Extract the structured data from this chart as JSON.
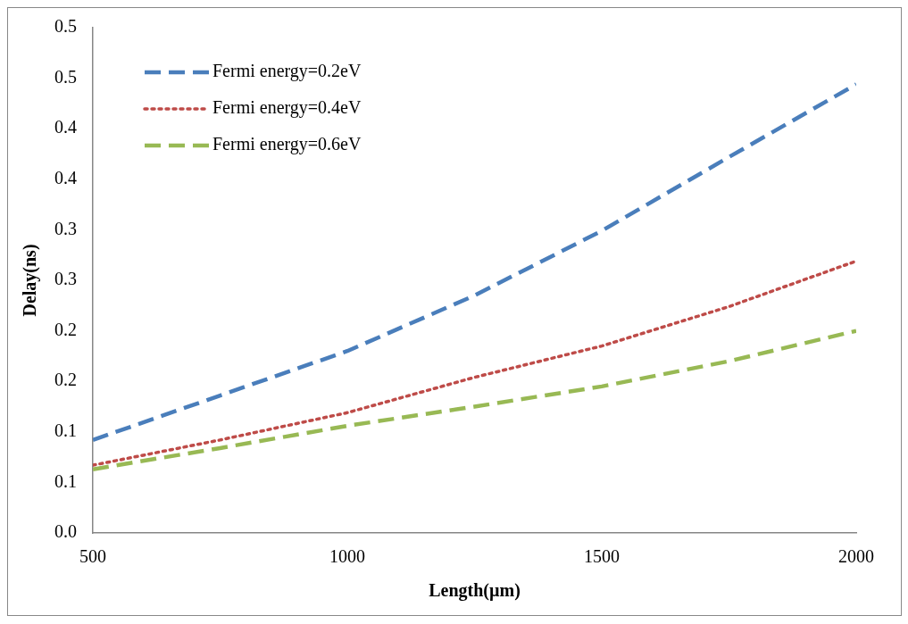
{
  "chart_data": {
    "type": "line",
    "xlabel": "Length(µm)",
    "ylabel": "Delay(ns)",
    "x": [
      500,
      750,
      1000,
      1250,
      1500,
      1750,
      2000
    ],
    "series": [
      {
        "name": "Fermi energy=0.2eV",
        "color": "#4a7ebb",
        "line_style": "dashed",
        "values": [
          0.092,
          0.136,
          0.18,
          0.235,
          0.299,
          0.372,
          0.444
        ]
      },
      {
        "name": "Fermi energy=0.4eV",
        "color": "#be4b48",
        "line_style": "dotted",
        "values": [
          0.067,
          0.092,
          0.119,
          0.154,
          0.185,
          0.224,
          0.269
        ]
      },
      {
        "name": "Fermi energy=0.6eV",
        "color": "#98b954",
        "line_style": "dashed",
        "values": [
          0.063,
          0.084,
          0.106,
          0.125,
          0.145,
          0.17,
          0.2
        ]
      }
    ],
    "xlim": [
      500,
      2000
    ],
    "xticks": [
      500,
      1000,
      1500,
      2000
    ],
    "ylim": [
      0,
      0.5
    ],
    "yticks": [
      {
        "value": 0,
        "label": "0.0"
      },
      {
        "value": 0.05,
        "label": "0.1"
      },
      {
        "value": 0.1,
        "label": "0.1"
      },
      {
        "value": 0.15,
        "label": "0.2"
      },
      {
        "value": 0.2,
        "label": "0.2"
      },
      {
        "value": 0.25,
        "label": "0.3"
      },
      {
        "value": 0.3,
        "label": "0.3"
      },
      {
        "value": 0.35,
        "label": "0.4"
      },
      {
        "value": 0.4,
        "label": "0.4"
      },
      {
        "value": 0.45,
        "label": "0.5"
      },
      {
        "value": 0.5,
        "label": "0.5"
      }
    ],
    "grid": false,
    "legend": "top left",
    "marker": "none"
  }
}
